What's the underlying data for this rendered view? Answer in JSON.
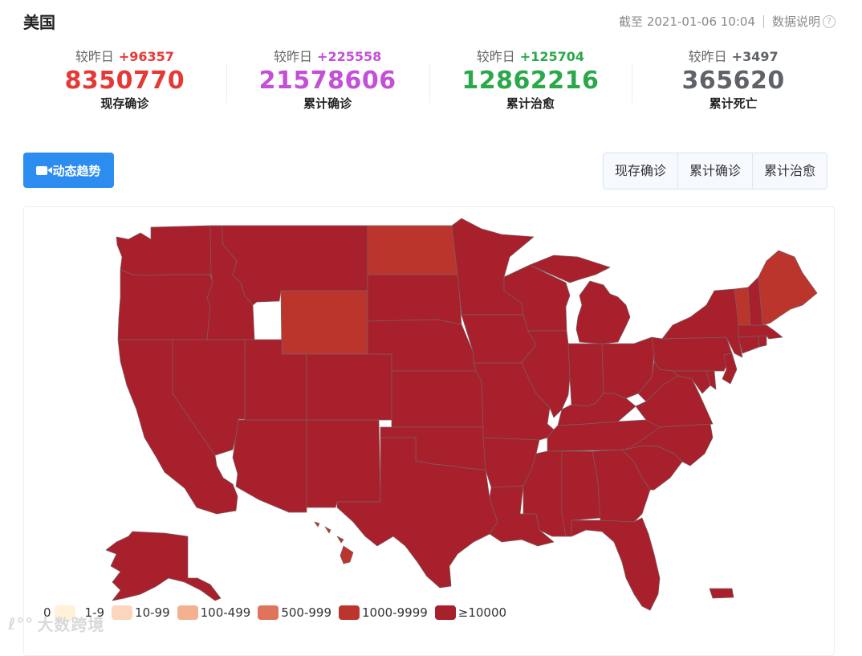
{
  "header": {
    "title": "美国",
    "as_of": "截至 2021-01-06 10:04",
    "data_note": "数据说明",
    "help_icon": "?"
  },
  "stats": [
    {
      "delta_label": "较昨日",
      "delta": "+96357",
      "value": "8350770",
      "label": "现存确诊",
      "color": "#e53935"
    },
    {
      "delta_label": "较昨日",
      "delta": "+225558",
      "value": "21578606",
      "label": "累计确诊",
      "color": "#c44fd8"
    },
    {
      "delta_label": "较昨日",
      "delta": "+125704",
      "value": "12862216",
      "label": "累计治愈",
      "color": "#2ba84a"
    },
    {
      "delta_label": "较昨日",
      "delta": "+3497",
      "value": "365620",
      "label": "累计死亡",
      "color": "#5f6368"
    }
  ],
  "trend_button": {
    "label": "动态趋势",
    "icon": "video-camera-icon"
  },
  "tabs": [
    {
      "label": "现存确诊",
      "active": true
    },
    {
      "label": "累计确诊",
      "active": false
    },
    {
      "label": "累计治愈",
      "active": false
    }
  ],
  "map": {
    "colors": {
      "dark": "#a8202b",
      "mid": "#bb352d",
      "border": "#7c5e63"
    },
    "mid_states": [
      "wyoming",
      "north-dakota",
      "maine",
      "vermont",
      "hawaii"
    ]
  },
  "legend": [
    {
      "label": "0",
      "color": "#ffffff"
    },
    {
      "label": "1-9",
      "color": "#fff2d9"
    },
    {
      "label": "10-99",
      "color": "#fbd5bd"
    },
    {
      "label": "100-499",
      "color": "#f4b18f"
    },
    {
      "label": "500-999",
      "color": "#e0745a"
    },
    {
      "label": "1000-9999",
      "color": "#bb352d"
    },
    {
      "label": "≥10000",
      "color": "#a8202b"
    }
  ],
  "watermark": {
    "text": "大数跨境",
    "icon": "logo-icon"
  }
}
